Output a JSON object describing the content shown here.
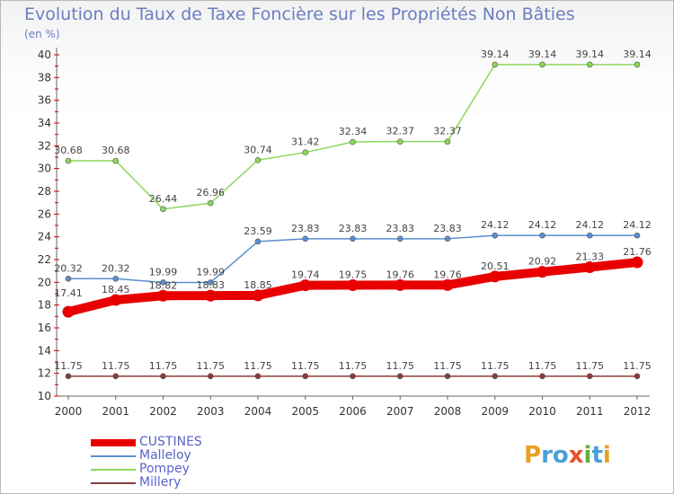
{
  "title": "Evolution du Taux de Taxe Foncière sur les Propriétés Non Bâties",
  "unit": "(en %)",
  "logo": {
    "letters": [
      "P",
      "r",
      "o",
      "x",
      "i",
      "t",
      "i"
    ],
    "colors": [
      "#e8a020",
      "#4aa0d8",
      "#4aa0d8",
      "#e8502a",
      "#60b040",
      "#4aa0d8",
      "#e8a020"
    ]
  },
  "chart_data": {
    "type": "line",
    "x": [
      "2000",
      "2001",
      "2002",
      "2003",
      "2004",
      "2005",
      "2006",
      "2007",
      "2008",
      "2009",
      "2010",
      "2011",
      "2012"
    ],
    "ylim": [
      10,
      40
    ],
    "yticks": [
      "10",
      "12",
      "14",
      "16",
      "18",
      "20",
      "22",
      "24",
      "26",
      "28",
      "30",
      "32",
      "34",
      "36",
      "38",
      "40"
    ],
    "grid": false,
    "legend_position": "bottom-left",
    "series": [
      {
        "name": "CUSTINES",
        "color": "#e80000",
        "values": [
          17.41,
          18.45,
          18.82,
          18.83,
          18.85,
          19.74,
          19.75,
          19.76,
          19.76,
          20.51,
          20.92,
          21.33,
          21.76
        ],
        "labels": [
          "17.41",
          "18.45",
          "18.82",
          "18.83",
          "18.85",
          "19.74",
          "19.75",
          "19.76",
          "19.76",
          "20.51",
          "20.92",
          "21.33",
          "21.76"
        ]
      },
      {
        "name": "Malleloy",
        "color": "#5b8fcf",
        "values": [
          20.32,
          20.32,
          19.99,
          19.99,
          23.59,
          23.83,
          23.83,
          23.83,
          23.83,
          24.12,
          24.12,
          24.12,
          24.12
        ],
        "labels": [
          "20.32",
          "20.32",
          "19.99",
          "19.99",
          "23.59",
          "23.83",
          "23.83",
          "23.83",
          "23.83",
          "24.12",
          "24.12",
          "24.12",
          "24.12"
        ]
      },
      {
        "name": "Pompey",
        "color": "#8cd85a",
        "values": [
          30.68,
          30.68,
          26.44,
          26.96,
          30.74,
          31.42,
          32.34,
          32.37,
          32.37,
          39.14,
          39.14,
          39.14,
          39.14
        ],
        "labels": [
          "30.68",
          "30.68",
          "26.44",
          "26.96",
          "30.74",
          "31.42",
          "32.34",
          "32.37",
          "32.37",
          "39.14",
          "39.14",
          "39.14",
          "39.14"
        ]
      },
      {
        "name": "Millery",
        "color": "#8a3b3b",
        "values": [
          11.75,
          11.75,
          11.75,
          11.75,
          11.75,
          11.75,
          11.75,
          11.75,
          11.75,
          11.75,
          11.75,
          11.75,
          11.75
        ],
        "labels": [
          "11.75",
          "11.75",
          "11.75",
          "11.75",
          "11.75",
          "11.75",
          "11.75",
          "11.75",
          "11.75",
          "11.75",
          "11.75",
          "11.75",
          "11.75"
        ]
      }
    ]
  }
}
